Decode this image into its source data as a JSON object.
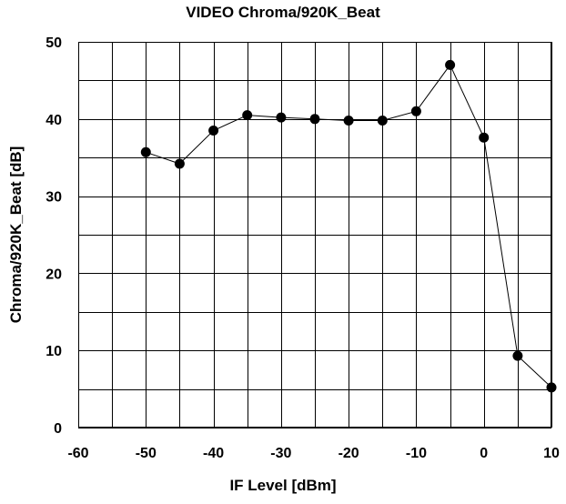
{
  "chart_data": {
    "type": "line",
    "title": "VIDEO Chroma/920K_Beat",
    "xlabel": "IF Level [dBm]",
    "ylabel": "Chroma/920K_Beat [dB]",
    "xlim": [
      -60,
      10
    ],
    "ylim": [
      0,
      50
    ],
    "x_ticks": [
      "-60",
      "-50",
      "-40",
      "-30",
      "-20",
      "-10",
      "0",
      "10"
    ],
    "y_ticks": [
      "0",
      "10",
      "20",
      "30",
      "40",
      "50"
    ],
    "grid": true,
    "series": [
      {
        "marker": "circle",
        "color": "#000000",
        "x": [
          -50,
          -45,
          -40,
          -35,
          -30,
          -25,
          -20,
          -15,
          -10,
          -5,
          0,
          5,
          10
        ],
        "y": [
          35.7,
          34.2,
          38.5,
          40.5,
          40.2,
          40.0,
          39.8,
          39.8,
          41.0,
          47.0,
          37.6,
          9.3,
          5.2
        ]
      }
    ]
  }
}
